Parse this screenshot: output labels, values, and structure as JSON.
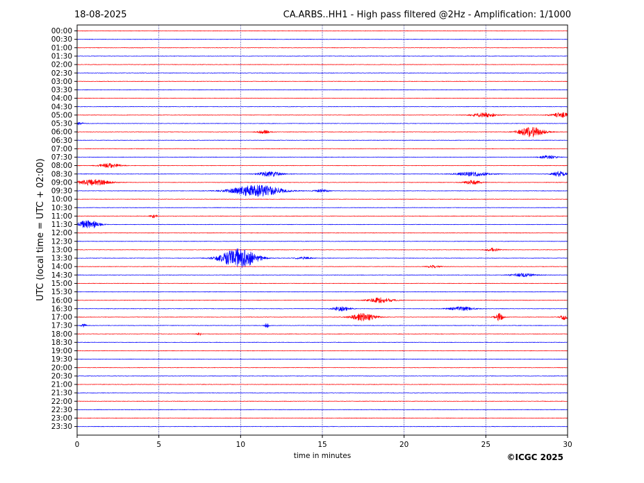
{
  "header": {
    "date": "18-08-2025",
    "title": "CA.ARBS..HH1 - High pass filtered @2Hz - Amplification: 1/1000"
  },
  "footer": {
    "copyright": "©ICGC 2025"
  },
  "chart_data": {
    "type": "line",
    "subtype": "helicorder",
    "xlabel": "time in minutes",
    "ylabel": "UTC (local time = UTC + 02:00)",
    "xlim": [
      0,
      30
    ],
    "x_ticks": [
      "0",
      "5",
      "10",
      "15",
      "20",
      "25",
      "30"
    ],
    "x_gridlines": [
      5,
      10,
      15,
      20,
      25
    ],
    "grid": "vertical dotted",
    "colors": {
      "even": "#ff0000",
      "odd": "#0000ff",
      "grid": "#00008b"
    },
    "rows": [
      "00:00",
      "00:30",
      "01:00",
      "01:30",
      "02:00",
      "02:30",
      "03:00",
      "03:30",
      "04:00",
      "04:30",
      "05:00",
      "05:30",
      "06:00",
      "06:30",
      "07:00",
      "07:30",
      "08:00",
      "08:30",
      "09:00",
      "09:30",
      "10:00",
      "10:30",
      "11:00",
      "11:30",
      "12:00",
      "12:30",
      "13:00",
      "13:30",
      "14:00",
      "14:30",
      "15:00",
      "15:30",
      "16:00",
      "16:30",
      "17:00",
      "17:30",
      "18:00",
      "18:30",
      "19:00",
      "19:30",
      "20:00",
      "20:30",
      "21:00",
      "21:30",
      "22:00",
      "22:30",
      "23:00",
      "23:30"
    ],
    "events": [
      {
        "row": "05:00",
        "minute": 24.9,
        "amplitude": 0.25,
        "duration": 1.5
      },
      {
        "row": "05:00",
        "minute": 29.6,
        "amplitude": 0.3,
        "duration": 1.2
      },
      {
        "row": "05:30",
        "minute": 0.1,
        "amplitude": 0.2,
        "duration": 0.5
      },
      {
        "row": "06:00",
        "minute": 11.4,
        "amplitude": 0.2,
        "duration": 0.8
      },
      {
        "row": "06:00",
        "minute": 27.8,
        "amplitude": 0.6,
        "duration": 1.5
      },
      {
        "row": "07:30",
        "minute": 28.8,
        "amplitude": 0.2,
        "duration": 1.0
      },
      {
        "row": "08:00",
        "minute": 2.0,
        "amplitude": 0.25,
        "duration": 1.3
      },
      {
        "row": "08:30",
        "minute": 11.8,
        "amplitude": 0.3,
        "duration": 1.5
      },
      {
        "row": "08:30",
        "minute": 24.2,
        "amplitude": 0.25,
        "duration": 2.0
      },
      {
        "row": "08:30",
        "minute": 29.5,
        "amplitude": 0.3,
        "duration": 0.9
      },
      {
        "row": "09:00",
        "minute": 1.0,
        "amplitude": 0.35,
        "duration": 2.0
      },
      {
        "row": "09:00",
        "minute": 24.2,
        "amplitude": 0.25,
        "duration": 1.0
      },
      {
        "row": "09:30",
        "minute": 11.0,
        "amplitude": 0.7,
        "duration": 3.0
      },
      {
        "row": "09:30",
        "minute": 15.0,
        "amplitude": 0.15,
        "duration": 1.0
      },
      {
        "row": "11:00",
        "minute": 4.7,
        "amplitude": 0.2,
        "duration": 0.4
      },
      {
        "row": "11:30",
        "minute": 0.7,
        "amplitude": 0.55,
        "duration": 1.2
      },
      {
        "row": "13:00",
        "minute": 25.4,
        "amplitude": 0.2,
        "duration": 0.8
      },
      {
        "row": "13:30",
        "minute": 9.9,
        "amplitude": 1.15,
        "duration": 2.2
      },
      {
        "row": "13:30",
        "minute": 13.8,
        "amplitude": 0.15,
        "duration": 1.0
      },
      {
        "row": "14:00",
        "minute": 21.8,
        "amplitude": 0.15,
        "duration": 0.8
      },
      {
        "row": "14:30",
        "minute": 27.3,
        "amplitude": 0.2,
        "duration": 1.5
      },
      {
        "row": "16:00",
        "minute": 18.6,
        "amplitude": 0.3,
        "duration": 1.5
      },
      {
        "row": "16:30",
        "minute": 16.2,
        "amplitude": 0.3,
        "duration": 1.0
      },
      {
        "row": "16:30",
        "minute": 23.5,
        "amplitude": 0.25,
        "duration": 1.5
      },
      {
        "row": "17:00",
        "minute": 17.5,
        "amplitude": 0.45,
        "duration": 1.5
      },
      {
        "row": "17:00",
        "minute": 25.8,
        "amplitude": 0.45,
        "duration": 0.5
      },
      {
        "row": "17:00",
        "minute": 29.8,
        "amplitude": 0.3,
        "duration": 0.5
      },
      {
        "row": "17:30",
        "minute": 0.4,
        "amplitude": 0.2,
        "duration": 0.3
      },
      {
        "row": "17:30",
        "minute": 11.6,
        "amplitude": 0.25,
        "duration": 0.3
      },
      {
        "row": "18:00",
        "minute": 7.5,
        "amplitude": 0.15,
        "duration": 0.3
      }
    ]
  }
}
